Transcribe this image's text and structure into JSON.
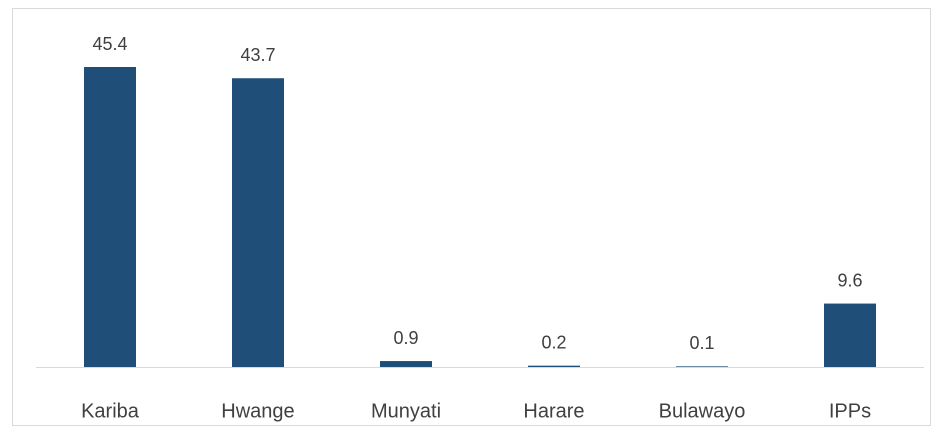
{
  "chart_data": {
    "type": "bar",
    "categories": [
      "Kariba",
      "Hwange",
      "Munyati",
      "Harare",
      "Bulawayo",
      "IPPs"
    ],
    "values": [
      45.4,
      43.7,
      0.9,
      0.2,
      0.1,
      9.6
    ],
    "color": "#1f4e79"
  }
}
